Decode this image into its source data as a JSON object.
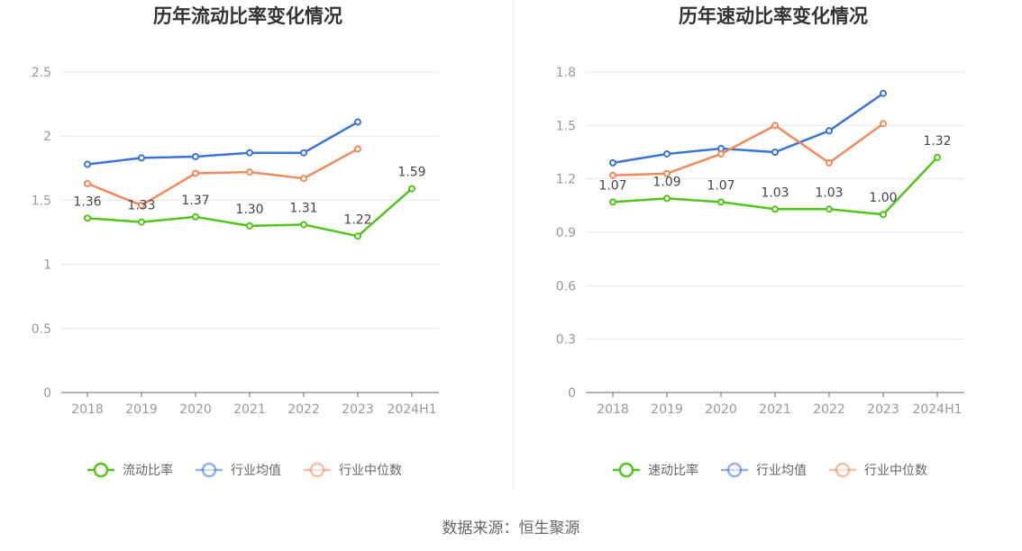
{
  "source_text": "数据来源：恒生聚源",
  "chart_data": [
    {
      "type": "line",
      "title": "历年流动比率变化情况",
      "categories": [
        "2018",
        "2019",
        "2020",
        "2021",
        "2022",
        "2023",
        "2024H1"
      ],
      "ylim": [
        0,
        2.5
      ],
      "yticks": [
        "0",
        "0.5",
        "1",
        "1.5",
        "2",
        "2.5"
      ],
      "grid": true,
      "legend_position": "bottom",
      "series": [
        {
          "name": "流动比率",
          "color": "#52c41a",
          "values": [
            1.36,
            1.33,
            1.37,
            1.3,
            1.31,
            1.22,
            1.59
          ],
          "labels": [
            "1.36",
            "1.33",
            "1.37",
            "1.30",
            "1.31",
            "1.22",
            "1.59"
          ]
        },
        {
          "name": "行业均值",
          "color": "#3a73d9",
          "values": [
            1.78,
            1.83,
            1.84,
            1.87,
            1.87,
            2.11,
            null
          ]
        },
        {
          "name": "行业中位数",
          "color": "#f08a5d",
          "values": [
            1.63,
            1.46,
            1.71,
            1.72,
            1.67,
            1.9,
            null
          ]
        }
      ]
    },
    {
      "type": "line",
      "title": "历年速动比率变化情况",
      "categories": [
        "2018",
        "2019",
        "2020",
        "2021",
        "2022",
        "2023",
        "2024H1"
      ],
      "ylim": [
        0,
        1.8
      ],
      "yticks": [
        "0",
        "0.3",
        "0.6",
        "0.9",
        "1.2",
        "1.5",
        "1.8"
      ],
      "grid": true,
      "legend_position": "bottom",
      "series": [
        {
          "name": "速动比率",
          "color": "#52c41a",
          "values": [
            1.07,
            1.09,
            1.07,
            1.03,
            1.03,
            1.0,
            1.32
          ],
          "labels": [
            "1.07",
            "1.09",
            "1.07",
            "1.03",
            "1.03",
            "1.00",
            "1.32"
          ]
        },
        {
          "name": "行业均值",
          "color": "#3a73d9",
          "values": [
            1.29,
            1.34,
            1.37,
            1.35,
            1.47,
            1.68,
            null
          ]
        },
        {
          "name": "行业中位数",
          "color": "#f08a5d",
          "values": [
            1.22,
            1.23,
            1.34,
            1.5,
            1.29,
            1.51,
            null
          ]
        }
      ]
    }
  ]
}
